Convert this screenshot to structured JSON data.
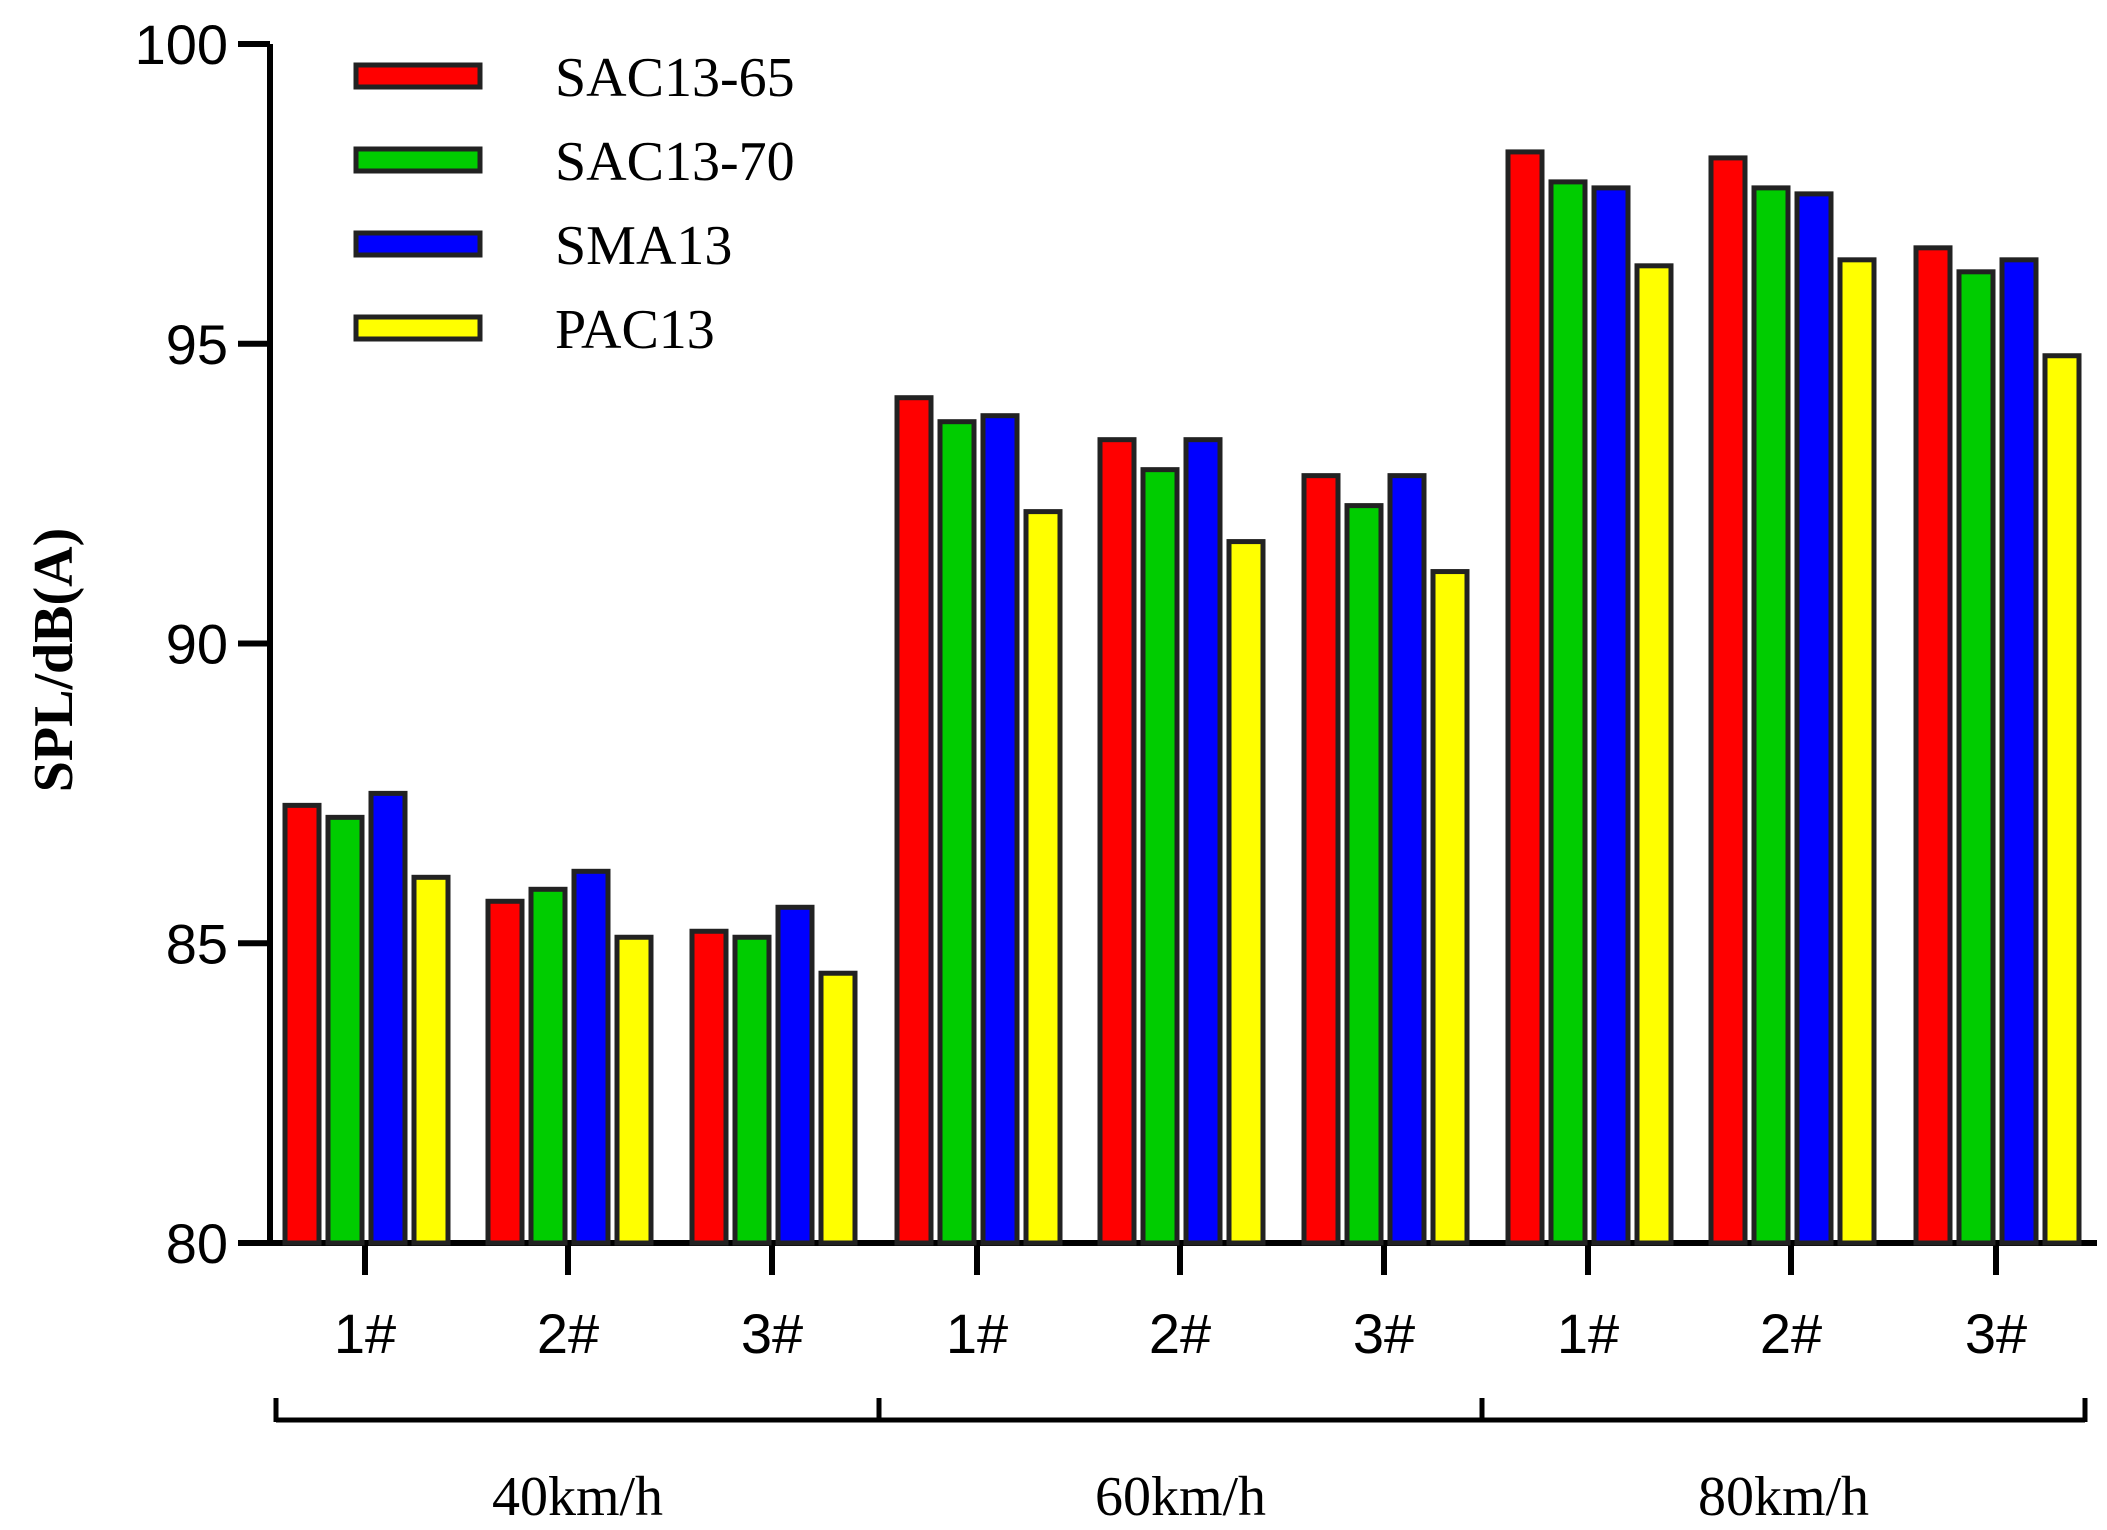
{
  "chart_data": {
    "type": "bar",
    "title": "",
    "xlabel": "",
    "ylabel": "SPL/dB(A)",
    "ylim": [
      80,
      100
    ],
    "yticks": [
      80,
      85,
      90,
      95,
      100
    ],
    "grid": false,
    "legend_position": "top-left",
    "groups": [
      {
        "label": "40km/h",
        "categories": [
          "1#",
          "2#",
          "3#"
        ]
      },
      {
        "label": "60km/h",
        "categories": [
          "1#",
          "2#",
          "3#"
        ]
      },
      {
        "label": "80km/h",
        "categories": [
          "1#",
          "2#",
          "3#"
        ]
      }
    ],
    "series": [
      {
        "name": "SAC13-65",
        "color": "#ff0000",
        "values": [
          87.3,
          85.7,
          85.2,
          94.1,
          93.4,
          92.8,
          98.2,
          98.1,
          96.6
        ]
      },
      {
        "name": "SAC13-70",
        "color": "#00cc00",
        "values": [
          87.1,
          85.9,
          85.1,
          93.7,
          92.9,
          92.3,
          97.7,
          97.6,
          96.2
        ]
      },
      {
        "name": "SMA13",
        "color": "#0000ff",
        "values": [
          87.5,
          86.2,
          85.6,
          93.8,
          93.4,
          92.8,
          97.6,
          97.5,
          96.4
        ]
      },
      {
        "name": "PAC13",
        "color": "#ffff00",
        "values": [
          86.1,
          85.1,
          84.5,
          92.2,
          91.7,
          91.2,
          96.3,
          96.4,
          94.8
        ]
      }
    ]
  }
}
